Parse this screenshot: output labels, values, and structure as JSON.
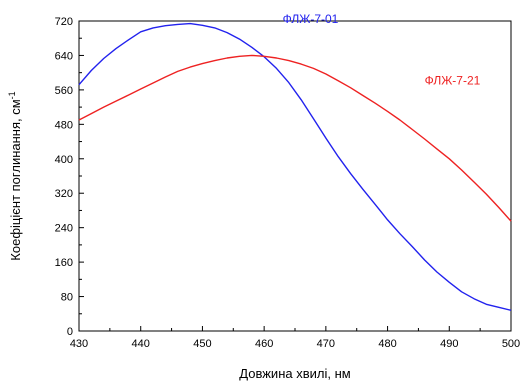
{
  "chart_data": {
    "type": "line",
    "xlabel": "Довжина хвилі, нм",
    "ylabel_main": "Коефіцієнт поглинання, см",
    "ylabel_sup": "-1",
    "xlim": [
      430,
      500
    ],
    "ylim": [
      0,
      720
    ],
    "x_ticks": [
      "430",
      "440",
      "450",
      "460",
      "470",
      "480",
      "490",
      "500"
    ],
    "y_ticks": [
      "0",
      "80",
      "160",
      "240",
      "320",
      "400",
      "480",
      "560",
      "640",
      "720"
    ],
    "series": [
      {
        "name": "ФЛЖ-7-01",
        "color": "#2222ee",
        "x": [
          430,
          432,
          434,
          436,
          438,
          440,
          442,
          444,
          446,
          448,
          450,
          452,
          454,
          456,
          458,
          460,
          462,
          464,
          466,
          468,
          470,
          472,
          474,
          476,
          478,
          480,
          482,
          484,
          486,
          488,
          490,
          492,
          494,
          496,
          498,
          500
        ],
        "y": [
          572,
          605,
          633,
          656,
          676,
          695,
          704,
          709,
          712,
          714,
          710,
          704,
          693,
          678,
          659,
          637,
          610,
          577,
          537,
          493,
          448,
          405,
          366,
          329,
          294,
          258,
          226,
          196,
          165,
          137,
          113,
          91,
          75,
          62,
          55,
          48
        ]
      },
      {
        "name": "ФЛЖ-7-21",
        "color": "#ee2222",
        "x": [
          430,
          432,
          434,
          436,
          438,
          440,
          442,
          444,
          446,
          448,
          450,
          452,
          454,
          456,
          458,
          460,
          462,
          464,
          466,
          468,
          470,
          472,
          474,
          476,
          478,
          480,
          482,
          484,
          486,
          488,
          490,
          492,
          494,
          496,
          498,
          500
        ],
        "y": [
          490,
          505,
          520,
          534,
          548,
          562,
          576,
          590,
          603,
          613,
          621,
          628,
          634,
          638,
          640,
          638,
          634,
          628,
          620,
          610,
          597,
          581,
          565,
          547,
          529,
          510,
          490,
          468,
          446,
          423,
          400,
          374,
          346,
          318,
          287,
          255
        ]
      }
    ]
  }
}
